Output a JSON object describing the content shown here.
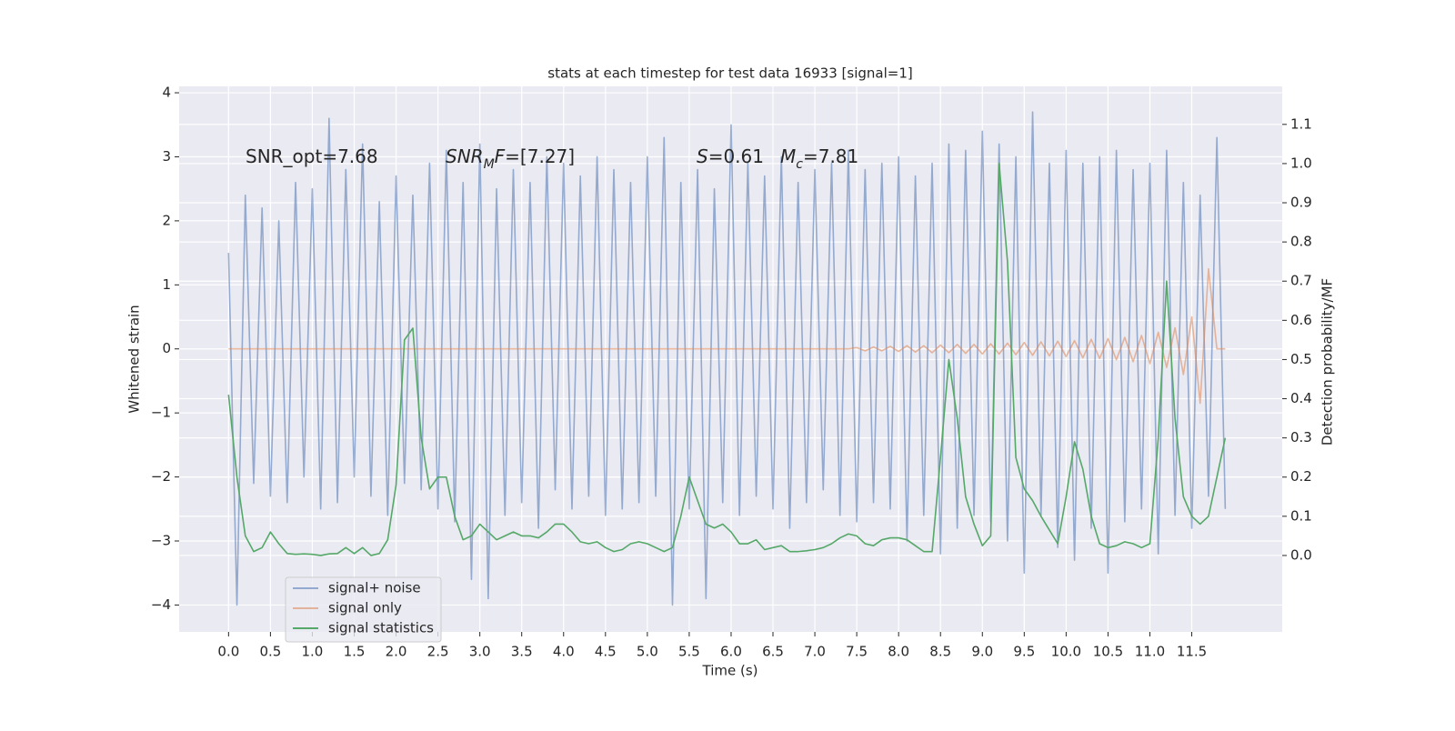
{
  "chart_data": {
    "type": "line",
    "title": "stats at each timestep for test data 16933 [signal=1]",
    "xlabel": "Time (s)",
    "ylabel": "Whitened strain",
    "y2label": "Detection probability/MF",
    "x": [
      0,
      0.1,
      0.2,
      0.3,
      0.4,
      0.5,
      0.6,
      0.7,
      0.8,
      0.9,
      1.0,
      1.1,
      1.2,
      1.3,
      1.4,
      1.5,
      1.6,
      1.7,
      1.8,
      1.9,
      2.0,
      2.1,
      2.2,
      2.3,
      2.4,
      2.5,
      2.6,
      2.7,
      2.8,
      2.9,
      3.0,
      3.1,
      3.2,
      3.3,
      3.4,
      3.5,
      3.6,
      3.7,
      3.8,
      3.9,
      4.0,
      4.1,
      4.2,
      4.3,
      4.4,
      4.5,
      4.6,
      4.7,
      4.8,
      4.9,
      5.0,
      5.1,
      5.2,
      5.3,
      5.4,
      5.5,
      5.6,
      5.7,
      5.8,
      5.9,
      6.0,
      6.1,
      6.2,
      6.3,
      6.4,
      6.5,
      6.6,
      6.7,
      6.8,
      6.9,
      7.0,
      7.1,
      7.2,
      7.3,
      7.4,
      7.5,
      7.6,
      7.7,
      7.8,
      7.9,
      8.0,
      8.1,
      8.2,
      8.3,
      8.4,
      8.5,
      8.6,
      8.7,
      8.8,
      8.9,
      9.0,
      9.1,
      9.2,
      9.3,
      9.4,
      9.5,
      9.6,
      9.7,
      9.8,
      9.9,
      10.0,
      10.1,
      10.2,
      10.3,
      10.4,
      10.5,
      10.6,
      10.7,
      10.8,
      10.9,
      11.0,
      11.1,
      11.2,
      11.3,
      11.4,
      11.5,
      11.6,
      11.7,
      11.8,
      11.9
    ],
    "series": [
      {
        "name": "signal+ noise",
        "color": "#4c72b0",
        "alpha": 0.55,
        "values": [
          1.5,
          -4.0,
          2.4,
          -2.1,
          2.2,
          -2.3,
          2.0,
          -2.4,
          2.6,
          -2.0,
          2.5,
          -2.5,
          3.6,
          -2.4,
          2.8,
          -2.0,
          3.2,
          -2.3,
          2.3,
          -2.6,
          2.7,
          -2.1,
          2.4,
          -2.2,
          2.9,
          -2.5,
          3.1,
          -2.7,
          2.6,
          -3.6,
          3.2,
          -3.9,
          2.5,
          -2.6,
          2.8,
          -2.4,
          2.6,
          -2.8,
          3.0,
          -2.2,
          2.9,
          -2.5,
          2.7,
          -2.3,
          3.0,
          -2.6,
          2.8,
          -2.5,
          2.6,
          -2.4,
          3.0,
          -2.3,
          3.3,
          -4.0,
          2.6,
          -2.5,
          2.8,
          -3.9,
          2.5,
          -2.4,
          3.5,
          -2.6,
          2.9,
          -2.3,
          2.7,
          -2.5,
          3.0,
          -2.8,
          2.6,
          -2.4,
          2.8,
          -2.2,
          2.9,
          -2.6,
          3.1,
          -2.7,
          2.8,
          -2.4,
          2.9,
          -2.5,
          3.0,
          -3.0,
          2.7,
          -2.6,
          2.9,
          -3.2,
          3.2,
          -2.8,
          3.1,
          -2.6,
          3.4,
          -2.7,
          3.2,
          -3.0,
          3.0,
          -3.5,
          3.7,
          -2.6,
          2.9,
          -3.1,
          3.1,
          -3.3,
          2.9,
          -2.8,
          3.0,
          -3.5,
          3.1,
          -2.7,
          2.8,
          -2.5,
          2.9,
          -3.2,
          3.1,
          -2.6,
          2.6,
          -2.8,
          2.4,
          -2.3,
          3.3,
          -2.5
        ]
      },
      {
        "name": "signal only",
        "color": "#dd8452",
        "alpha": 0.55,
        "values": [
          0,
          0,
          0,
          0,
          0,
          0,
          0,
          0,
          0,
          0,
          0,
          0,
          0,
          0,
          0,
          0,
          0,
          0,
          0,
          0,
          0,
          0,
          0,
          0,
          0,
          0,
          0,
          0,
          0,
          0,
          0,
          0,
          0,
          0,
          0,
          0,
          0,
          0,
          0,
          0,
          0,
          0,
          0,
          0,
          0,
          0,
          0,
          0,
          0,
          0,
          0,
          0,
          0,
          0,
          0,
          0,
          0,
          0,
          0,
          0,
          0,
          0,
          0,
          0,
          0,
          0,
          0,
          0,
          0,
          0,
          0,
          0,
          0,
          0,
          0,
          0.02,
          -0.03,
          0.03,
          -0.03,
          0.04,
          -0.04,
          0.05,
          -0.05,
          0.05,
          -0.06,
          0.06,
          -0.06,
          0.07,
          -0.07,
          0.07,
          -0.08,
          0.08,
          -0.08,
          0.09,
          -0.09,
          0.1,
          -0.1,
          0.11,
          -0.11,
          0.12,
          -0.12,
          0.13,
          -0.14,
          0.15,
          -0.15,
          0.16,
          -0.17,
          0.18,
          -0.2,
          0.21,
          -0.23,
          0.26,
          -0.29,
          0.33,
          -0.4,
          0.5,
          -0.85,
          1.25,
          0,
          0
        ]
      },
      {
        "name": "signal statistics",
        "color": "#55a868",
        "alpha": 1,
        "axis": "y2",
        "values": [
          0.41,
          0.2,
          0.05,
          0.01,
          0.02,
          0.06,
          0.03,
          0.005,
          0.003,
          0.004,
          0.003,
          0.0,
          0.004,
          0.005,
          0.02,
          0.005,
          0.02,
          0.0,
          0.005,
          0.04,
          0.18,
          0.55,
          0.58,
          0.3,
          0.17,
          0.2,
          0.2,
          0.1,
          0.04,
          0.05,
          0.08,
          0.06,
          0.04,
          0.05,
          0.06,
          0.05,
          0.05,
          0.045,
          0.06,
          0.08,
          0.08,
          0.06,
          0.035,
          0.03,
          0.035,
          0.02,
          0.01,
          0.015,
          0.03,
          0.035,
          0.03,
          0.02,
          0.01,
          0.02,
          0.1,
          0.2,
          0.14,
          0.08,
          0.07,
          0.08,
          0.06,
          0.03,
          0.03,
          0.04,
          0.015,
          0.02,
          0.025,
          0.01,
          0.01,
          0.012,
          0.015,
          0.02,
          0.03,
          0.045,
          0.055,
          0.05,
          0.03,
          0.025,
          0.04,
          0.045,
          0.045,
          0.04,
          0.025,
          0.01,
          0.01,
          0.25,
          0.5,
          0.35,
          0.15,
          0.08,
          0.025,
          0.05,
          1.0,
          0.75,
          0.25,
          0.17,
          0.14,
          0.1,
          0.065,
          0.03,
          0.15,
          0.29,
          0.22,
          0.1,
          0.03,
          0.02,
          0.025,
          0.035,
          0.03,
          0.02,
          0.03,
          0.3,
          0.7,
          0.35,
          0.15,
          0.1,
          0.08,
          0.1,
          0.2,
          0.3
        ]
      }
    ],
    "xlim": [
      -0.59,
      12.58
    ],
    "ylim": [
      -4.42,
      4.1
    ],
    "y2lim": [
      -0.195,
      1.197
    ],
    "xticks": [
      {
        "value": 0,
        "label": "0.0"
      },
      0.5,
      {
        "value": 1,
        "label": "1.0"
      },
      1.5,
      {
        "value": 2,
        "label": "2.0"
      },
      2.5,
      {
        "value": 3,
        "label": "3.0"
      },
      3.5,
      {
        "value": 4,
        "label": "4.0"
      },
      4.5,
      {
        "value": 5,
        "label": "5.0"
      },
      5.5,
      {
        "value": 6,
        "label": "6.0"
      },
      6.5,
      {
        "value": 7,
        "label": "7.0"
      },
      7.5,
      {
        "value": 8,
        "label": "8.0"
      },
      8.5,
      {
        "value": 9,
        "label": "9.0"
      },
      9.5,
      {
        "value": 10,
        "label": "10.0"
      },
      10.5,
      {
        "value": 11,
        "label": "11.0"
      },
      11.5
    ],
    "yticks": [
      {
        "value": -4,
        "label": "−4"
      },
      {
        "value": -3,
        "label": "−3"
      },
      {
        "value": -2,
        "label": "−2"
      },
      {
        "value": -1,
        "label": "−1"
      },
      0,
      1,
      2,
      3,
      4
    ],
    "y2ticks": [
      {
        "value": 0,
        "label": "0.0"
      },
      0.1,
      0.2,
      0.3,
      0.4,
      0.5,
      0.6,
      0.7,
      0.8,
      0.9,
      {
        "value": 1,
        "label": "1.0"
      },
      1.1
    ],
    "grid": true,
    "legend": "lower left",
    "annotations": [
      [
        {
          "text": "SNR_opt=7.68"
        }
      ],
      [
        {
          "text": "SNR",
          "italic": true
        },
        {
          "text": "M",
          "italic": true,
          "sub": true
        },
        {
          "text": "F",
          "italic": true
        },
        {
          "text": "=[7.27]"
        }
      ],
      [
        {
          "text": "S",
          "italic": true
        },
        {
          "text": "=0.61"
        }
      ],
      [
        {
          "text": "M",
          "italic": true
        },
        {
          "text": "c",
          "italic": true,
          "sub": true
        },
        {
          "text": "=7.81"
        }
      ]
    ]
  }
}
